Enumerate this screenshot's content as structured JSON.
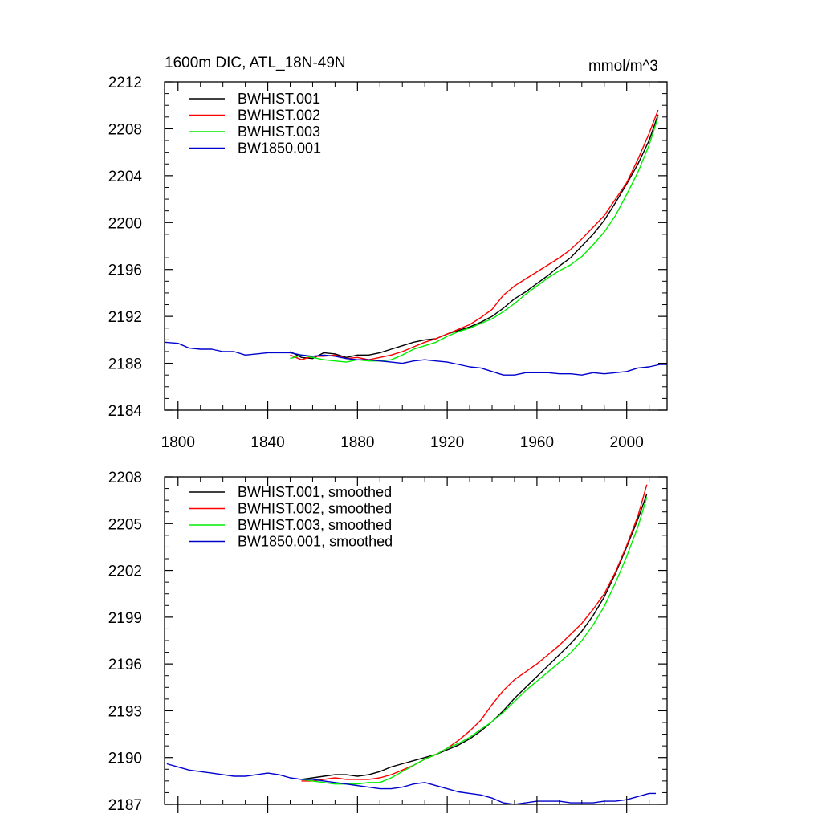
{
  "chart_data": [
    {
      "type": "line",
      "title": "1600m DIC, ATL_18N-49N",
      "units": "mmol/m^3",
      "xlabel": "",
      "ylabel": "",
      "xlim": [
        1794,
        2018
      ],
      "ylim": [
        2184,
        2212
      ],
      "xticks": [
        1800,
        1840,
        1880,
        1920,
        1960,
        2000
      ],
      "xtick_labels": [
        "1800",
        "1840",
        "1880",
        "1920",
        "1960",
        "2000"
      ],
      "yticks": [
        2184,
        2188,
        2192,
        2196,
        2200,
        2204,
        2208,
        2212
      ],
      "ytick_labels": [
        "2184",
        "2188",
        "2192",
        "2196",
        "2200",
        "2204",
        "2208",
        "2212"
      ],
      "legend_position": "top-left",
      "series": [
        {
          "name": "BWHIST.001",
          "color": "#000000",
          "x": [
            1850,
            1855,
            1860,
            1865,
            1870,
            1875,
            1880,
            1885,
            1890,
            1895,
            1900,
            1905,
            1910,
            1915,
            1920,
            1925,
            1930,
            1935,
            1940,
            1945,
            1950,
            1955,
            1960,
            1965,
            1970,
            1975,
            1980,
            1985,
            1990,
            1995,
            2000,
            2005,
            2010,
            2014
          ],
          "y": [
            2189.0,
            2188.5,
            2188.4,
            2188.9,
            2188.8,
            2188.5,
            2188.7,
            2188.7,
            2188.9,
            2189.2,
            2189.5,
            2189.8,
            2190.0,
            2190.1,
            2190.5,
            2190.8,
            2191.1,
            2191.5,
            2192.0,
            2192.7,
            2193.5,
            2194.1,
            2194.8,
            2195.5,
            2196.3,
            2197.0,
            2198.0,
            2199.0,
            2200.2,
            2201.7,
            2203.3,
            2205.0,
            2207.0,
            2209.2
          ]
        },
        {
          "name": "BWHIST.002",
          "color": "#ff0000",
          "x": [
            1850,
            1855,
            1860,
            1865,
            1870,
            1875,
            1880,
            1885,
            1890,
            1895,
            1900,
            1905,
            1910,
            1915,
            1920,
            1925,
            1930,
            1935,
            1940,
            1945,
            1950,
            1955,
            1960,
            1965,
            1970,
            1975,
            1980,
            1985,
            1990,
            1995,
            2000,
            2005,
            2010,
            2014
          ],
          "y": [
            2188.7,
            2188.3,
            2188.6,
            2188.6,
            2188.7,
            2188.4,
            2188.5,
            2188.3,
            2188.5,
            2188.7,
            2189.0,
            2189.4,
            2189.8,
            2190.1,
            2190.5,
            2190.9,
            2191.3,
            2191.9,
            2192.6,
            2193.8,
            2194.6,
            2195.2,
            2195.8,
            2196.4,
            2197.0,
            2197.7,
            2198.6,
            2199.6,
            2200.6,
            2202.0,
            2203.4,
            2205.4,
            2207.6,
            2209.6
          ]
        },
        {
          "name": "BWHIST.003",
          "color": "#00ee00",
          "x": [
            1850,
            1855,
            1860,
            1865,
            1870,
            1875,
            1880,
            1885,
            1890,
            1895,
            1900,
            1905,
            1910,
            1915,
            1920,
            1925,
            1930,
            1935,
            1940,
            1945,
            1950,
            1955,
            1960,
            1965,
            1970,
            1975,
            1980,
            1985,
            1990,
            1995,
            2000,
            2005,
            2010,
            2014
          ],
          "y": [
            2188.4,
            2188.7,
            2188.5,
            2188.3,
            2188.2,
            2188.1,
            2188.3,
            2188.2,
            2188.2,
            2188.3,
            2188.7,
            2189.2,
            2189.5,
            2189.8,
            2190.3,
            2190.7,
            2191.0,
            2191.4,
            2191.8,
            2192.4,
            2193.1,
            2193.9,
            2194.6,
            2195.3,
            2195.9,
            2196.4,
            2197.1,
            2198.1,
            2199.2,
            2200.6,
            2202.4,
            2204.3,
            2206.6,
            2209.0
          ]
        },
        {
          "name": "BW1850.001",
          "color": "#0000cc",
          "x": [
            1794,
            1800,
            1805,
            1810,
            1815,
            1820,
            1825,
            1830,
            1835,
            1840,
            1845,
            1850,
            1855,
            1860,
            1865,
            1870,
            1875,
            1880,
            1885,
            1890,
            1895,
            1900,
            1905,
            1910,
            1915,
            1920,
            1925,
            1930,
            1935,
            1940,
            1945,
            1950,
            1955,
            1960,
            1965,
            1970,
            1975,
            1980,
            1985,
            1990,
            1995,
            2000,
            2005,
            2010,
            2015,
            2018
          ],
          "y": [
            2189.8,
            2189.7,
            2189.3,
            2189.2,
            2189.2,
            2189.0,
            2189.0,
            2188.7,
            2188.8,
            2188.9,
            2188.9,
            2188.9,
            2188.7,
            2188.6,
            2188.7,
            2188.6,
            2188.4,
            2188.3,
            2188.3,
            2188.2,
            2188.1,
            2188.0,
            2188.2,
            2188.3,
            2188.2,
            2188.1,
            2187.9,
            2187.7,
            2187.6,
            2187.3,
            2187.0,
            2187.0,
            2187.2,
            2187.2,
            2187.2,
            2187.1,
            2187.1,
            2187.0,
            2187.2,
            2187.1,
            2187.2,
            2187.3,
            2187.6,
            2187.7,
            2187.9,
            2187.9
          ]
        }
      ]
    },
    {
      "type": "line",
      "title": "",
      "xlabel": "",
      "ylabel": "",
      "xlim": [
        1794,
        2018
      ],
      "ylim": [
        2187,
        2208
      ],
      "xticks": [
        1800,
        1840,
        1880,
        1920,
        1960,
        2000
      ],
      "xtick_labels": [],
      "yticks": [
        2187,
        2190,
        2193,
        2196,
        2199,
        2202,
        2205,
        2208
      ],
      "ytick_labels": [
        "2187",
        "2190",
        "2193",
        "2196",
        "2199",
        "2202",
        "2205",
        "2208"
      ],
      "legend_position": "top-left",
      "series": [
        {
          "name": "BWHIST.001, smoothed",
          "color": "#000000",
          "x": [
            1855,
            1860,
            1865,
            1870,
            1875,
            1880,
            1885,
            1890,
            1895,
            1900,
            1905,
            1910,
            1915,
            1920,
            1925,
            1930,
            1935,
            1940,
            1945,
            1950,
            1955,
            1960,
            1965,
            1970,
            1975,
            1980,
            1985,
            1990,
            1995,
            2000,
            2005,
            2009
          ],
          "y": [
            2188.6,
            2188.7,
            2188.8,
            2188.9,
            2188.9,
            2188.8,
            2188.9,
            2189.1,
            2189.4,
            2189.6,
            2189.8,
            2190.0,
            2190.2,
            2190.5,
            2190.8,
            2191.2,
            2191.7,
            2192.3,
            2193.0,
            2193.8,
            2194.5,
            2195.2,
            2195.9,
            2196.6,
            2197.3,
            2198.1,
            2199.1,
            2200.3,
            2201.8,
            2203.5,
            2205.3,
            2206.9
          ]
        },
        {
          "name": "BWHIST.002, smoothed",
          "color": "#ff0000",
          "x": [
            1855,
            1860,
            1865,
            1870,
            1875,
            1880,
            1885,
            1890,
            1895,
            1900,
            1905,
            1910,
            1915,
            1920,
            1925,
            1930,
            1935,
            1940,
            1945,
            1950,
            1955,
            1960,
            1965,
            1970,
            1975,
            1980,
            1985,
            1990,
            1995,
            2000,
            2005,
            2009
          ],
          "y": [
            2188.5,
            2188.5,
            2188.6,
            2188.7,
            2188.6,
            2188.6,
            2188.6,
            2188.7,
            2188.9,
            2189.2,
            2189.5,
            2189.9,
            2190.2,
            2190.6,
            2191.1,
            2191.7,
            2192.4,
            2193.4,
            2194.3,
            2195.0,
            2195.5,
            2196.0,
            2196.6,
            2197.2,
            2197.9,
            2198.6,
            2199.5,
            2200.5,
            2201.9,
            2203.6,
            2205.5,
            2207.5
          ]
        },
        {
          "name": "BWHIST.003, smoothed",
          "color": "#00ee00",
          "x": [
            1855,
            1860,
            1865,
            1870,
            1875,
            1880,
            1885,
            1890,
            1895,
            1900,
            1905,
            1910,
            1915,
            1920,
            1925,
            1930,
            1935,
            1940,
            1945,
            1950,
            1955,
            1960,
            1965,
            1970,
            1975,
            1980,
            1985,
            1990,
            1995,
            2000,
            2005,
            2009
          ],
          "y": [
            2188.6,
            2188.5,
            2188.4,
            2188.3,
            2188.3,
            2188.3,
            2188.4,
            2188.4,
            2188.7,
            2189.1,
            2189.5,
            2189.9,
            2190.2,
            2190.6,
            2190.9,
            2191.3,
            2191.8,
            2192.3,
            2192.9,
            2193.6,
            2194.3,
            2194.9,
            2195.5,
            2196.1,
            2196.7,
            2197.5,
            2198.5,
            2199.7,
            2201.2,
            2202.9,
            2204.8,
            2206.7
          ]
        },
        {
          "name": "BW1850.001, smoothed",
          "color": "#0000cc",
          "x": [
            1795,
            1800,
            1805,
            1810,
            1815,
            1820,
            1825,
            1830,
            1835,
            1840,
            1845,
            1850,
            1855,
            1860,
            1865,
            1870,
            1875,
            1880,
            1885,
            1890,
            1895,
            1900,
            1905,
            1910,
            1915,
            1920,
            1925,
            1930,
            1935,
            1940,
            1945,
            1950,
            1955,
            1960,
            1965,
            1970,
            1975,
            1980,
            1985,
            1990,
            1995,
            2000,
            2005,
            2010,
            2013
          ],
          "y": [
            2189.6,
            2189.4,
            2189.2,
            2189.1,
            2189.0,
            2188.9,
            2188.8,
            2188.8,
            2188.9,
            2189.0,
            2188.9,
            2188.7,
            2188.6,
            2188.6,
            2188.5,
            2188.4,
            2188.3,
            2188.2,
            2188.1,
            2188.0,
            2188.0,
            2188.1,
            2188.3,
            2188.4,
            2188.2,
            2188.0,
            2187.8,
            2187.7,
            2187.6,
            2187.4,
            2187.1,
            2187.0,
            2187.1,
            2187.2,
            2187.2,
            2187.2,
            2187.1,
            2187.1,
            2187.1,
            2187.2,
            2187.2,
            2187.3,
            2187.5,
            2187.7,
            2187.7
          ]
        }
      ]
    }
  ]
}
